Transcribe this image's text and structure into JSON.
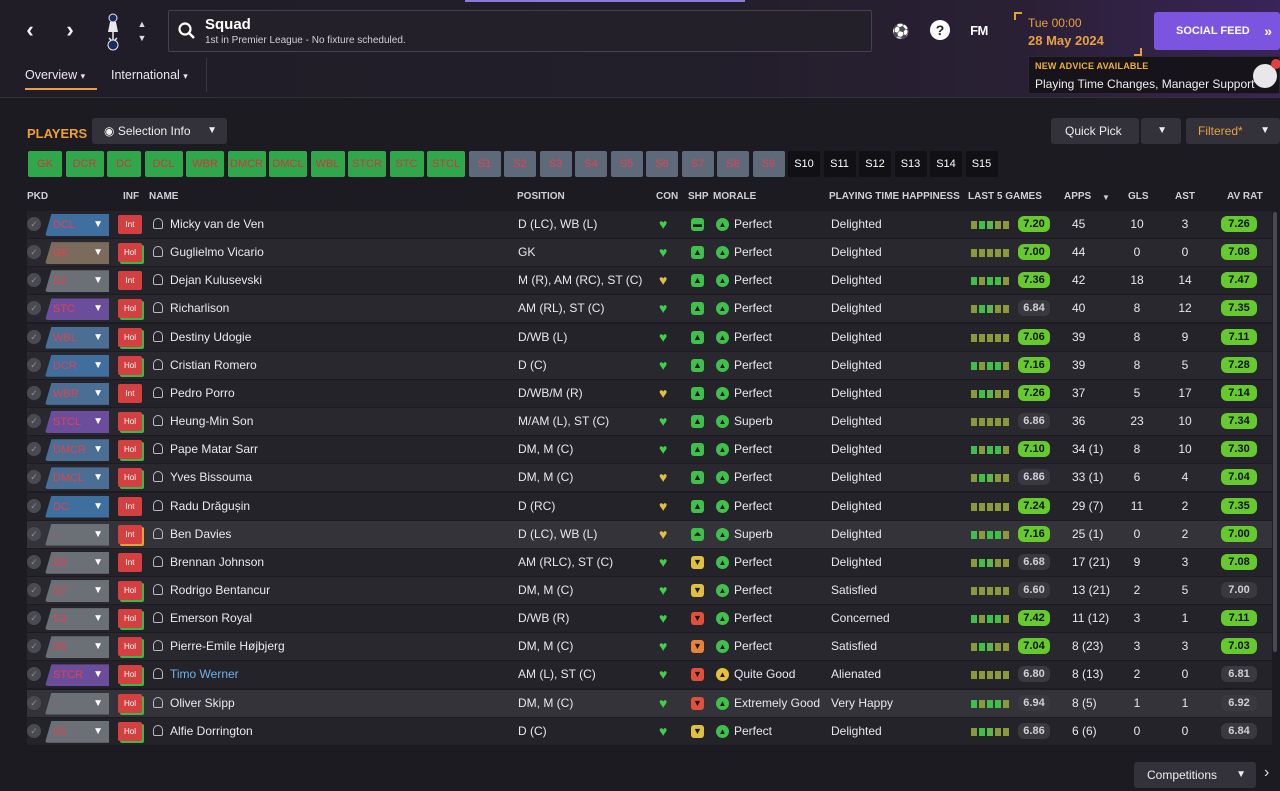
{
  "header": {
    "title": "Squad",
    "subtitle": "1st in Premier League - No fixture scheduled.",
    "time": "Tue 00:00",
    "date": "28 May 2024",
    "social_feed": "SOCIAL FEED",
    "fm_label": "FM",
    "help_label": "?",
    "advice_heading": "NEW ADVICE AVAILABLE",
    "advice_text": "Playing Time Changes, Manager Support"
  },
  "tabs": {
    "overview": "Overview",
    "international": "International"
  },
  "toolbar": {
    "players_label": "PLAYERS",
    "selection_info": "Selection Info",
    "quick_pick": "Quick Pick",
    "filtered": "Filtered*"
  },
  "chips": [
    {
      "label": "GK",
      "style": "g"
    },
    {
      "label": "DCR",
      "style": "g"
    },
    {
      "label": "DC",
      "style": "g"
    },
    {
      "label": "DCL",
      "style": "g"
    },
    {
      "label": "WBR",
      "style": "g"
    },
    {
      "label": "DMCR",
      "style": "g"
    },
    {
      "label": "DMCL",
      "style": "g"
    },
    {
      "label": "WBL",
      "style": "g"
    },
    {
      "label": "STCR",
      "style": "g"
    },
    {
      "label": "STC",
      "style": "g"
    },
    {
      "label": "STCL",
      "style": "g"
    },
    {
      "label": "S1",
      "style": "gr"
    },
    {
      "label": "S2",
      "style": "gr"
    },
    {
      "label": "S3",
      "style": "gr"
    },
    {
      "label": "S4",
      "style": "gr"
    },
    {
      "label": "S5",
      "style": "gr"
    },
    {
      "label": "S6",
      "style": "gr"
    },
    {
      "label": "S7",
      "style": "gr"
    },
    {
      "label": "S8",
      "style": "gr"
    },
    {
      "label": "S9",
      "style": "gr"
    },
    {
      "label": "S10",
      "style": "b"
    },
    {
      "label": "S11",
      "style": "b"
    },
    {
      "label": "S12",
      "style": "b"
    },
    {
      "label": "S13",
      "style": "b"
    },
    {
      "label": "S14",
      "style": "b"
    },
    {
      "label": "S15",
      "style": "b"
    }
  ],
  "columns": {
    "pkd": "PKD",
    "inf": "INF",
    "name": "NAME",
    "position": "POSITION",
    "con": "CON",
    "shp": "SHP",
    "morale": "MORALE",
    "pth": "PLAYING TIME HAPPINESS",
    "last5": "LAST 5 GAMES",
    "apps": "APPS",
    "gls": "GLS",
    "ast": "AST",
    "avrat": "AV RAT"
  },
  "colors": {
    "green_rating": "#66c92e",
    "grey_rating": "#c8c8c8",
    "accent_orange": "#f0a032",
    "social_purple": "#7b55e0",
    "inf_red": "#d44040"
  },
  "players": [
    {
      "slot": "DCL",
      "slot_color": "#3f6f9e",
      "inf": "Int",
      "name": "Micky van de Ven",
      "position": "D (LC), WB (L)",
      "con": "green",
      "shp": "neutral",
      "morale": "Perfect",
      "morale_icon": "green",
      "pth": "Delighted",
      "last5": "7.20",
      "last5_hi": true,
      "apps": "45",
      "gls": "10",
      "ast": "3",
      "avrat": "7.26",
      "avrat_hi": true
    },
    {
      "slot": "GK",
      "slot_color": "#7a6b5c",
      "inf": "Hol",
      "name": "Guglielmo Vicario",
      "position": "GK",
      "con": "green",
      "shp": "up",
      "morale": "Perfect",
      "morale_icon": "green",
      "pth": "Delighted",
      "last5": "7.00",
      "last5_hi": true,
      "apps": "44",
      "gls": "0",
      "ast": "0",
      "avrat": "7.08",
      "avrat_hi": true
    },
    {
      "slot": "S2",
      "slot_color": "#6b6f76",
      "inf": "Int",
      "name": "Dejan Kulusevski",
      "position": "M (R), AM (RC), ST (C)",
      "con": "yellow",
      "shp": "up",
      "morale": "Perfect",
      "morale_icon": "green",
      "pth": "Delighted",
      "last5": "7.36",
      "last5_hi": true,
      "apps": "42",
      "gls": "18",
      "ast": "14",
      "avrat": "7.47",
      "avrat_hi": true
    },
    {
      "slot": "STC",
      "slot_color": "#6a4e9c",
      "inf": "Hol",
      "name": "Richarlison",
      "position": "AM (RL), ST (C)",
      "con": "green",
      "shp": "up",
      "morale": "Perfect",
      "morale_icon": "green",
      "pth": "Delighted",
      "last5": "6.84",
      "last5_hi": false,
      "apps": "40",
      "gls": "8",
      "ast": "12",
      "avrat": "7.35",
      "avrat_hi": true
    },
    {
      "slot": "WBL",
      "slot_color": "#4b6e94",
      "inf": "Hol",
      "name": "Destiny Udogie",
      "position": "D/WB (L)",
      "con": "green",
      "shp": "up",
      "morale": "Perfect",
      "morale_icon": "green",
      "pth": "Delighted",
      "last5": "7.06",
      "last5_hi": true,
      "apps": "39",
      "gls": "8",
      "ast": "9",
      "avrat": "7.11",
      "avrat_hi": true
    },
    {
      "slot": "DCR",
      "slot_color": "#3f6f9e",
      "inf": "Hol",
      "name": "Cristian Romero",
      "position": "D (C)",
      "con": "green",
      "shp": "up",
      "morale": "Perfect",
      "morale_icon": "green",
      "pth": "Delighted",
      "last5": "7.16",
      "last5_hi": true,
      "apps": "39",
      "gls": "8",
      "ast": "5",
      "avrat": "7.28",
      "avrat_hi": true
    },
    {
      "slot": "WBR",
      "slot_color": "#4b6e94",
      "inf": "Int",
      "name": "Pedro Porro",
      "position": "D/WB/M (R)",
      "con": "yellow",
      "shp": "up",
      "morale": "Perfect",
      "morale_icon": "green",
      "pth": "Delighted",
      "last5": "7.26",
      "last5_hi": true,
      "apps": "37",
      "gls": "5",
      "ast": "17",
      "avrat": "7.14",
      "avrat_hi": true
    },
    {
      "slot": "STCL",
      "slot_color": "#6a4e9c",
      "inf": "Hol",
      "name": "Heung-Min Son",
      "position": "M/AM (L), ST (C)",
      "con": "green",
      "shp": "up",
      "morale": "Superb",
      "morale_icon": "green",
      "pth": "Delighted",
      "last5": "6.86",
      "last5_hi": false,
      "apps": "36",
      "gls": "23",
      "ast": "10",
      "avrat": "7.34",
      "avrat_hi": true
    },
    {
      "slot": "DMCR",
      "slot_color": "#4b6e94",
      "inf": "Hol",
      "name": "Pape Matar Sarr",
      "position": "DM, M (C)",
      "con": "green",
      "shp": "up",
      "morale": "Perfect",
      "morale_icon": "green",
      "pth": "Delighted",
      "last5": "7.10",
      "last5_hi": true,
      "apps": "34 (1)",
      "gls": "8",
      "ast": "10",
      "avrat": "7.30",
      "avrat_hi": true
    },
    {
      "slot": "DMCL",
      "slot_color": "#4b6e94",
      "inf": "Hol",
      "name": "Yves Bissouma",
      "position": "DM, M (C)",
      "con": "yellow",
      "shp": "up",
      "morale": "Perfect",
      "morale_icon": "green",
      "pth": "Delighted",
      "last5": "6.86",
      "last5_hi": false,
      "apps": "33 (1)",
      "gls": "6",
      "ast": "4",
      "avrat": "7.04",
      "avrat_hi": true
    },
    {
      "slot": "DC",
      "slot_color": "#3f6f9e",
      "inf": "Int",
      "name": "Radu Drăgușin",
      "position": "D (RC)",
      "con": "yellow",
      "shp": "up",
      "morale": "Perfect",
      "morale_icon": "green",
      "pth": "Delighted",
      "last5": "7.24",
      "last5_hi": true,
      "apps": "29 (7)",
      "gls": "11",
      "ast": "2",
      "avrat": "7.35",
      "avrat_hi": true
    },
    {
      "slot": "-",
      "slot_color": "#6b6f76",
      "inf": "Int",
      "name": "Ben Davies",
      "position": "D (LC), WB (L)",
      "con": "yellow",
      "shp": "upup",
      "morale": "Superb",
      "morale_icon": "green",
      "pth": "Delighted",
      "last5": "7.16",
      "last5_hi": true,
      "apps": "25 (1)",
      "gls": "0",
      "ast": "2",
      "avrat": "7.00",
      "avrat_hi": true
    },
    {
      "slot": "S8",
      "slot_color": "#6b6f76",
      "inf": "Int",
      "name": "Brennan Johnson",
      "position": "AM (RLC), ST (C)",
      "con": "green",
      "shp": "down-y",
      "morale": "Perfect",
      "morale_icon": "green",
      "pth": "Delighted",
      "last5": "6.68",
      "last5_hi": false,
      "apps": "17 (21)",
      "gls": "9",
      "ast": "3",
      "avrat": "7.08",
      "avrat_hi": true
    },
    {
      "slot": "S7",
      "slot_color": "#6b6f76",
      "inf": "Hol",
      "name": "Rodrigo Bentancur",
      "position": "DM, M (C)",
      "con": "green",
      "shp": "down-y",
      "morale": "Perfect",
      "morale_icon": "green",
      "pth": "Satisfied",
      "last5": "6.60",
      "last5_hi": false,
      "apps": "13 (21)",
      "gls": "2",
      "ast": "5",
      "avrat": "7.00",
      "avrat_hi": false
    },
    {
      "slot": "S3",
      "slot_color": "#6b6f76",
      "inf": "Hol",
      "name": "Emerson Royal",
      "position": "D/WB (R)",
      "con": "green",
      "shp": "down-r",
      "morale": "Perfect",
      "morale_icon": "green",
      "pth": "Concerned",
      "last5": "7.42",
      "last5_hi": true,
      "apps": "11 (12)",
      "gls": "3",
      "ast": "1",
      "avrat": "7.11",
      "avrat_hi": true
    },
    {
      "slot": "S6",
      "slot_color": "#6b6f76",
      "inf": "Hol",
      "name": "Pierre-Emile Højbjerg",
      "position": "DM, M (C)",
      "con": "green",
      "shp": "down-o",
      "morale": "Perfect",
      "morale_icon": "green",
      "pth": "Satisfied",
      "last5": "7.04",
      "last5_hi": true,
      "apps": "8 (23)",
      "gls": "3",
      "ast": "3",
      "avrat": "7.03",
      "avrat_hi": true
    },
    {
      "slot": "STCR",
      "slot_color": "#6a4e9c",
      "inf": "Hol",
      "name": "Timo Werner",
      "position": "AM (L), ST (C)",
      "con": "green",
      "shp": "down-r",
      "morale": "Quite Good",
      "morale_icon": "yellow",
      "pth": "Alienated",
      "last5": "6.80",
      "last5_hi": false,
      "apps": "8 (13)",
      "gls": "2",
      "ast": "0",
      "avrat": "6.81",
      "avrat_hi": false
    },
    {
      "slot": "-",
      "slot_color": "#6b6f76",
      "inf": "Hol",
      "name": "Oliver Skipp",
      "position": "DM, M (C)",
      "con": "green",
      "shp": "down-r",
      "morale": "Extremely Good",
      "morale_icon": "green",
      "pth": "Very Happy",
      "last5": "6.94",
      "last5_hi": false,
      "apps": "8 (5)",
      "gls": "1",
      "ast": "1",
      "avrat": "6.92",
      "avrat_hi": false
    },
    {
      "slot": "S5",
      "slot_color": "#6b6f76",
      "inf": "Hol",
      "name": "Alfie Dorrington",
      "position": "D (C)",
      "con": "green",
      "shp": "down-y",
      "morale": "Perfect",
      "morale_icon": "green",
      "pth": "Delighted",
      "last5": "6.86",
      "last5_hi": false,
      "apps": "6 (6)",
      "gls": "0",
      "ast": "0",
      "avrat": "6.84",
      "avrat_hi": false
    }
  ],
  "footer": {
    "competitions": "Competitions"
  }
}
